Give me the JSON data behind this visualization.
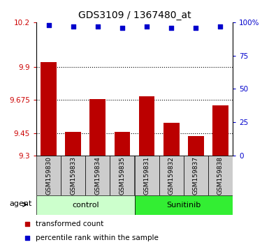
{
  "title": "GDS3109 / 1367480_at",
  "categories": [
    "GSM159830",
    "GSM159833",
    "GSM159834",
    "GSM159835",
    "GSM159831",
    "GSM159832",
    "GSM159837",
    "GSM159838"
  ],
  "bar_values": [
    9.93,
    9.46,
    9.68,
    9.46,
    9.7,
    9.52,
    9.43,
    9.64
  ],
  "dot_values": [
    98,
    97,
    97,
    96,
    97,
    96,
    96,
    97
  ],
  "ylim_left": [
    9.3,
    10.2
  ],
  "ylim_right": [
    0,
    100
  ],
  "yticks_left": [
    9.3,
    9.45,
    9.675,
    9.9,
    10.2
  ],
  "yticks_right": [
    0,
    25,
    50,
    75,
    100
  ],
  "ytick_labels_left": [
    "9.3",
    "9.45",
    "9.675",
    "9.9",
    "10.2"
  ],
  "ytick_labels_right": [
    "0",
    "25",
    "50",
    "75",
    "100%"
  ],
  "bar_color": "#bb0000",
  "dot_color": "#0000cc",
  "group_labels": [
    "control",
    "Sunitinib"
  ],
  "group_ranges": [
    [
      0,
      4
    ],
    [
      4,
      8
    ]
  ],
  "group_colors_light": "#ccffcc",
  "group_colors_dark": "#33ee33",
  "agent_label": "agent",
  "legend_items": [
    "transformed count",
    "percentile rank within the sample"
  ],
  "legend_colors": [
    "#bb0000",
    "#0000cc"
  ],
  "xlabel_color": "#cc0000",
  "ylabel_right_color": "#0000cc",
  "bar_width": 0.65,
  "dotted_yticks": [
    9.9,
    9.675,
    9.45
  ],
  "xtick_bg_color": "#cccccc",
  "spine_color": "#000000"
}
